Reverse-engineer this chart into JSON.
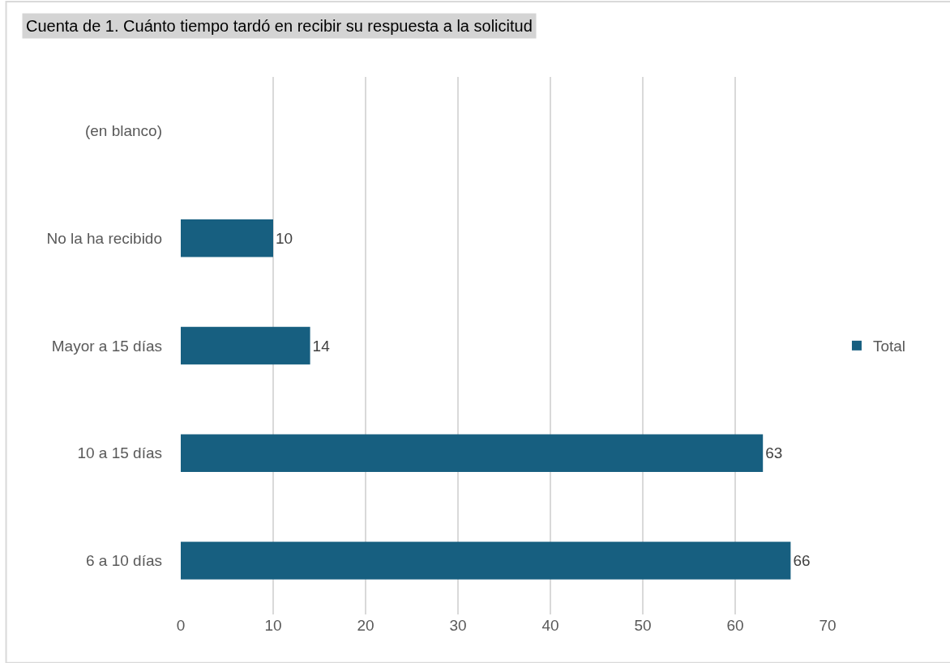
{
  "chart_data": {
    "type": "bar",
    "orientation": "horizontal",
    "title": "Cuenta de 1. Cuánto tiempo tardó en recibir su respuesta a la solicitud",
    "categories": [
      "(en blanco)",
      "No la ha recibido",
      "Mayor a 15 días",
      "10 a 15 días",
      "6 a 10 días"
    ],
    "series": [
      {
        "name": "Total",
        "color": "#175f80",
        "values": [
          null,
          10,
          14,
          63,
          66
        ]
      }
    ],
    "xlim": [
      0,
      70
    ],
    "xticks": [
      0,
      10,
      20,
      30,
      40,
      50,
      60,
      70
    ],
    "grid": "x",
    "legend": "right",
    "data_labels": true
  }
}
